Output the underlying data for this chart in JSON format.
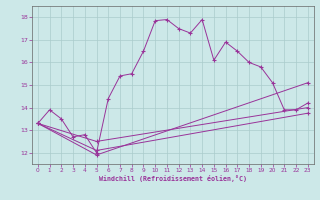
{
  "xlabel": "Windchill (Refroidissement éolien,°C)",
  "background_color": "#cce8e8",
  "line_color": "#993399",
  "grid_color": "#aacccc",
  "xlim": [
    -0.5,
    23.5
  ],
  "ylim": [
    11.5,
    18.5
  ],
  "yticks": [
    12,
    13,
    14,
    15,
    16,
    17,
    18
  ],
  "xticks": [
    0,
    1,
    2,
    3,
    4,
    5,
    6,
    7,
    8,
    9,
    10,
    11,
    12,
    13,
    14,
    15,
    16,
    17,
    18,
    19,
    20,
    21,
    22,
    23
  ],
  "lines": [
    {
      "x": [
        0,
        1,
        2,
        3,
        4,
        5,
        6,
        7,
        8,
        9,
        10,
        11,
        12,
        13,
        14,
        15,
        16,
        17,
        18,
        19,
        20,
        21,
        22,
        23
      ],
      "y": [
        13.3,
        13.9,
        13.5,
        12.7,
        12.8,
        12.0,
        14.4,
        15.4,
        15.5,
        16.5,
        17.85,
        17.9,
        17.5,
        17.3,
        17.9,
        16.1,
        16.9,
        16.5,
        16.0,
        15.8,
        15.1,
        13.9,
        13.9,
        14.2
      ]
    },
    {
      "x": [
        0,
        5,
        23
      ],
      "y": [
        13.3,
        11.9,
        15.1
      ]
    },
    {
      "x": [
        0,
        5,
        23
      ],
      "y": [
        13.3,
        12.5,
        14.0
      ]
    },
    {
      "x": [
        0,
        5,
        23
      ],
      "y": [
        13.3,
        12.1,
        13.75
      ]
    }
  ]
}
